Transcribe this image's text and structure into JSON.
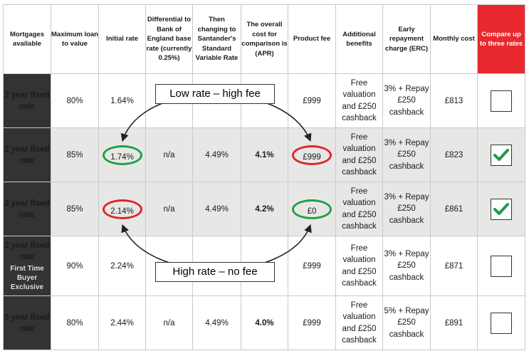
{
  "headers": [
    "Mortgages available",
    "Maximum loan to value",
    "Initial rate",
    "Differential to Bank of England base rate (currently 0.25%)",
    "Then changing to Santander's Standard Variable Rate",
    "The overall cost for comparison is (APR)",
    "Product fee",
    "Additional benefits",
    "Early repayment charge (ERC)",
    "Monthly cost",
    "Compare up to three rates"
  ],
  "rows": [
    {
      "label": "2 year fixed rate",
      "sub": "",
      "ltv": "80%",
      "rate": "1.64%",
      "diff": "",
      "svr": "",
      "apr": "",
      "fee": "£999",
      "benefits": "Free valuation and £250 cashback",
      "erc": "3% + Repay £250 cashback",
      "monthly": "£813",
      "checked": false
    },
    {
      "label": "2 year fixed rate",
      "sub": "",
      "ltv": "85%",
      "rate": "1.74%",
      "diff": "n/a",
      "svr": "4.49%",
      "apr": "4.1%",
      "fee": "£999",
      "benefits": "Free valuation and £250 cashback",
      "erc": "3% + Repay £250 cashback",
      "monthly": "£823",
      "checked": true
    },
    {
      "label": "2 year fixed rate",
      "sub": "",
      "ltv": "85%",
      "rate": "2.14%",
      "diff": "n/a",
      "svr": "4.49%",
      "apr": "4.2%",
      "fee": "£0",
      "benefits": "Free valuation and £250 cashback",
      "erc": "3% + Repay £250 cashback",
      "monthly": "£861",
      "checked": true
    },
    {
      "label": "2 year fixed rate",
      "sub": "First Time Buyer Exclusive",
      "ltv": "90%",
      "rate": "2.24%",
      "diff": "",
      "svr": "",
      "apr": "",
      "fee": "£999",
      "benefits": "Free valuation and £250 cashback",
      "erc": "3% + Repay £250 cashback",
      "monthly": "£871",
      "checked": false
    },
    {
      "label": "5 year fixed rate",
      "sub": "",
      "ltv": "80%",
      "rate": "2.44%",
      "diff": "n/a",
      "svr": "4.49%",
      "apr": "4.0%",
      "fee": "£999",
      "benefits": "Free valuation and £250 cashback",
      "erc": "5% + Repay £250 cashback",
      "monthly": "£891",
      "checked": false
    }
  ],
  "callouts": {
    "top": "Low rate – high fee",
    "bottom": "High rate – no fee"
  },
  "colors": {
    "compare_header": "#e8282f",
    "label_column": "#333333",
    "shade": "#e7e8e6",
    "circle_red": "#e0252b",
    "circle_green": "#1fa046",
    "check": "#1f9a4a"
  }
}
